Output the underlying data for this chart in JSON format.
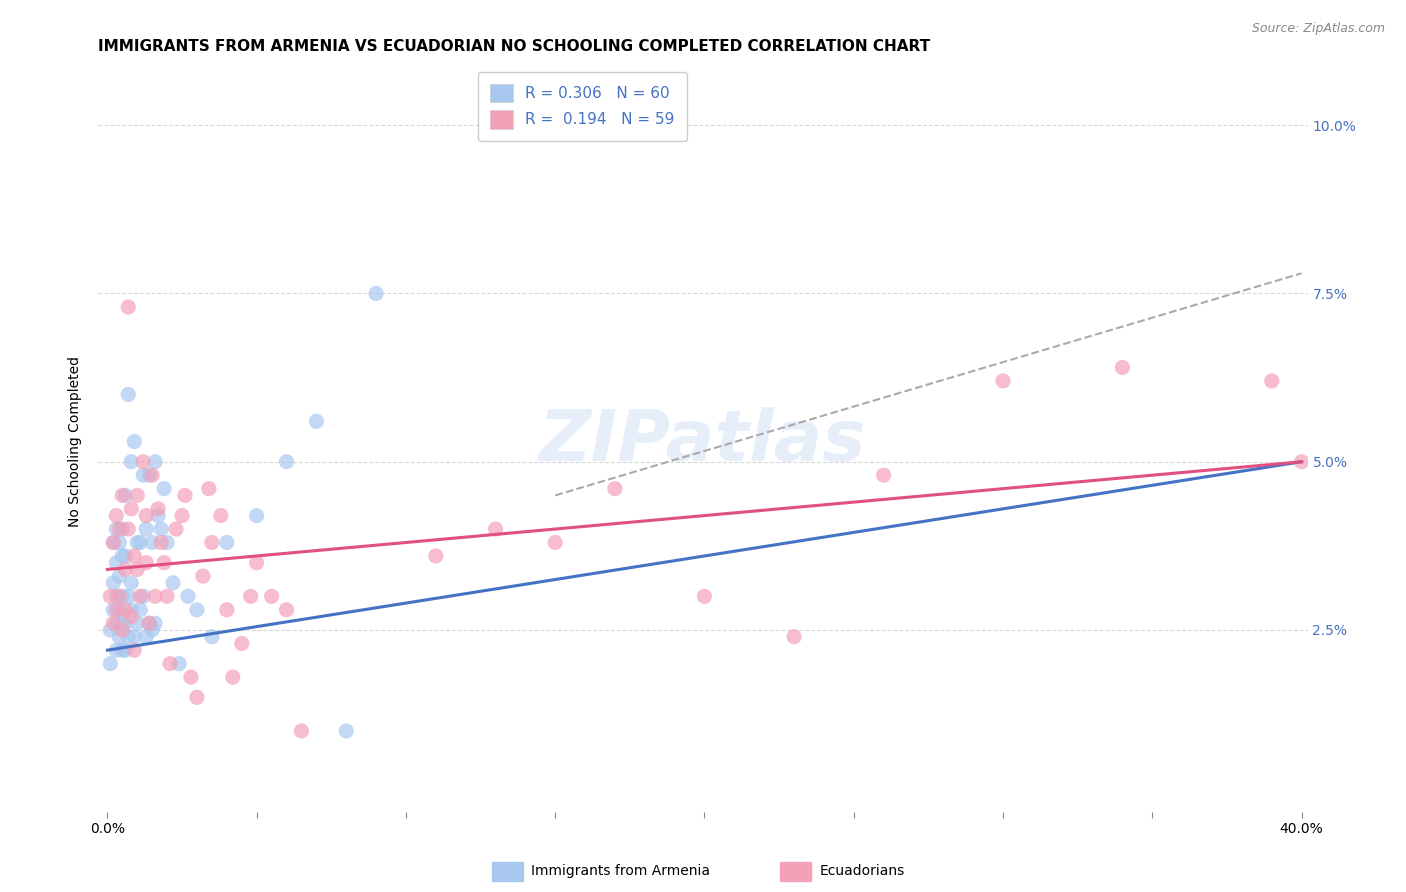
{
  "title": "IMMIGRANTS FROM ARMENIA VS ECUADORIAN NO SCHOOLING COMPLETED CORRELATION CHART",
  "source": "Source: ZipAtlas.com",
  "ylabel": "No Schooling Completed",
  "yticks_right": [
    "2.5%",
    "5.0%",
    "7.5%",
    "10.0%"
  ],
  "ytick_values": [
    0.025,
    0.05,
    0.075,
    0.1
  ],
  "xtick_values": [
    0.0,
    0.05,
    0.1,
    0.15,
    0.2,
    0.25,
    0.3,
    0.35,
    0.4
  ],
  "xlim": [
    -0.003,
    0.402
  ],
  "ylim": [
    -0.002,
    0.108
  ],
  "armenia_color": "#a8c8f0",
  "ecuador_color": "#f4a0b8",
  "armenia_line_color": "#4472C4",
  "ecuador_line_color": "#e05080",
  "dashed_line_color": "#aaaaaa",
  "legend_r_armenia": "0.306",
  "legend_n_armenia": "60",
  "legend_r_ecuador": "0.194",
  "legend_n_ecuador": "59",
  "armenia_line_x0": 0.0,
  "armenia_line_x1": 0.4,
  "armenia_line_y0": 0.022,
  "armenia_line_y1": 0.05,
  "ecuador_line_x0": 0.0,
  "ecuador_line_x1": 0.4,
  "ecuador_line_y0": 0.034,
  "ecuador_line_y1": 0.05,
  "dashed_line_x0": 0.15,
  "dashed_line_x1": 0.4,
  "dashed_line_y0": 0.045,
  "dashed_line_y1": 0.078,
  "armenia_scatter_x": [
    0.001,
    0.001,
    0.002,
    0.002,
    0.002,
    0.003,
    0.003,
    0.003,
    0.003,
    0.003,
    0.004,
    0.004,
    0.004,
    0.004,
    0.005,
    0.005,
    0.005,
    0.005,
    0.005,
    0.006,
    0.006,
    0.006,
    0.006,
    0.007,
    0.007,
    0.007,
    0.008,
    0.008,
    0.008,
    0.009,
    0.009,
    0.01,
    0.01,
    0.011,
    0.011,
    0.012,
    0.012,
    0.013,
    0.013,
    0.014,
    0.014,
    0.015,
    0.015,
    0.016,
    0.016,
    0.017,
    0.018,
    0.019,
    0.02,
    0.022,
    0.024,
    0.027,
    0.03,
    0.035,
    0.04,
    0.05,
    0.06,
    0.07,
    0.08,
    0.09
  ],
  "armenia_scatter_y": [
    0.02,
    0.025,
    0.028,
    0.032,
    0.038,
    0.022,
    0.026,
    0.03,
    0.035,
    0.04,
    0.024,
    0.028,
    0.033,
    0.038,
    0.022,
    0.026,
    0.03,
    0.036,
    0.04,
    0.022,
    0.026,
    0.036,
    0.045,
    0.024,
    0.03,
    0.06,
    0.028,
    0.032,
    0.05,
    0.024,
    0.053,
    0.026,
    0.038,
    0.028,
    0.038,
    0.03,
    0.048,
    0.024,
    0.04,
    0.026,
    0.048,
    0.025,
    0.038,
    0.026,
    0.05,
    0.042,
    0.04,
    0.046,
    0.038,
    0.032,
    0.02,
    0.03,
    0.028,
    0.024,
    0.038,
    0.042,
    0.05,
    0.056,
    0.01,
    0.075
  ],
  "ecuador_scatter_x": [
    0.001,
    0.002,
    0.002,
    0.003,
    0.003,
    0.004,
    0.004,
    0.005,
    0.005,
    0.006,
    0.006,
    0.007,
    0.007,
    0.008,
    0.008,
    0.009,
    0.009,
    0.01,
    0.01,
    0.011,
    0.012,
    0.013,
    0.013,
    0.014,
    0.015,
    0.016,
    0.017,
    0.018,
    0.019,
    0.02,
    0.021,
    0.023,
    0.025,
    0.026,
    0.028,
    0.03,
    0.032,
    0.034,
    0.035,
    0.038,
    0.04,
    0.042,
    0.045,
    0.048,
    0.05,
    0.055,
    0.06,
    0.065,
    0.11,
    0.13,
    0.15,
    0.17,
    0.2,
    0.23,
    0.26,
    0.3,
    0.34,
    0.39,
    0.4
  ],
  "ecuador_scatter_y": [
    0.03,
    0.026,
    0.038,
    0.028,
    0.042,
    0.03,
    0.04,
    0.025,
    0.045,
    0.028,
    0.034,
    0.04,
    0.073,
    0.027,
    0.043,
    0.036,
    0.022,
    0.034,
    0.045,
    0.03,
    0.05,
    0.042,
    0.035,
    0.026,
    0.048,
    0.03,
    0.043,
    0.038,
    0.035,
    0.03,
    0.02,
    0.04,
    0.042,
    0.045,
    0.018,
    0.015,
    0.033,
    0.046,
    0.038,
    0.042,
    0.028,
    0.018,
    0.023,
    0.03,
    0.035,
    0.03,
    0.028,
    0.01,
    0.036,
    0.04,
    0.038,
    0.046,
    0.03,
    0.024,
    0.048,
    0.062,
    0.064,
    0.062,
    0.05
  ],
  "background_color": "#ffffff",
  "grid_color": "#d8d8d8",
  "title_fontsize": 11,
  "axis_fontsize": 10,
  "tick_fontsize": 10,
  "legend_fontsize": 11,
  "watermark": "ZIPatlas"
}
